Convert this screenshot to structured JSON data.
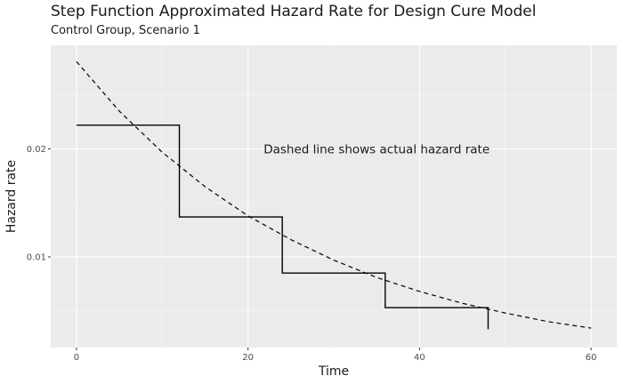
{
  "chart_data": {
    "type": "line",
    "title": "Step Function Approximated Hazard Rate for Design Cure Model",
    "subtitle": "Control Group, Scenario 1",
    "xlabel": "Time",
    "ylabel": "Hazard rate",
    "annotation": "Dashed line shows actual hazard rate",
    "xlim": [
      -3,
      63
    ],
    "ylim": [
      0.0016,
      0.0296
    ],
    "x_ticks": [
      0,
      20,
      40,
      60
    ],
    "y_ticks": [
      0.01,
      0.02
    ],
    "x_tick_labels": [
      "0",
      "20",
      "40",
      "60"
    ],
    "y_tick_labels": [
      "0.01",
      "0.02"
    ],
    "grid": true,
    "series": [
      {
        "style": "step",
        "x": [
          0,
          12,
          24,
          36,
          48
        ],
        "values": [
          0.0222,
          0.0137,
          0.0085,
          0.0053,
          0.0033
        ]
      },
      {
        "style": "dashed",
        "x": [
          0,
          5,
          10,
          15,
          20,
          25,
          30,
          35,
          40,
          45,
          50,
          55,
          60
        ],
        "values": [
          0.0281,
          0.0235,
          0.0197,
          0.0165,
          0.0138,
          0.0116,
          0.0097,
          0.0081,
          0.0068,
          0.0057,
          0.0048,
          0.004,
          0.0034
        ]
      }
    ]
  }
}
